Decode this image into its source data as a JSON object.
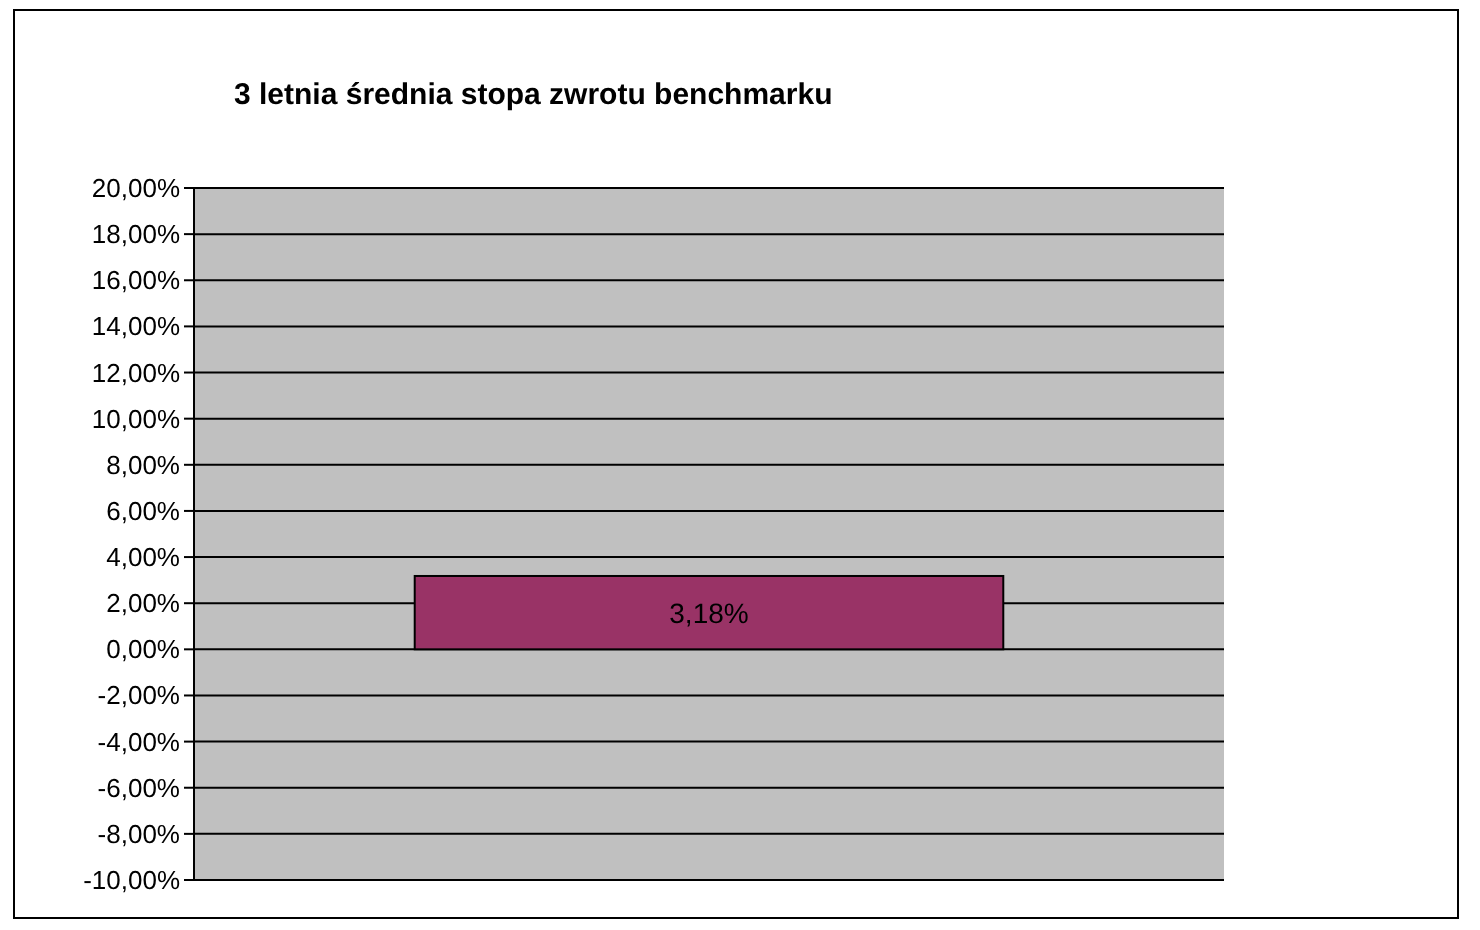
{
  "chart_data": {
    "type": "bar",
    "title": "3 letnia średnia stopa zwrotu benchmarku",
    "categories": [
      null
    ],
    "values": [
      3.18
    ],
    "color": "#993366",
    "value_labels": [
      "3,18%"
    ],
    "ylim": [
      -10,
      20
    ],
    "yticks": [
      {
        "value": -10,
        "label": "-10,00%"
      },
      {
        "value": -8,
        "label": "-8,00%"
      },
      {
        "value": -6,
        "label": "-6,00%"
      },
      {
        "value": -4,
        "label": "-4,00%"
      },
      {
        "value": -2,
        "label": "-2,00%"
      },
      {
        "value": 0,
        "label": "0,00%"
      },
      {
        "value": 2,
        "label": "2,00%"
      },
      {
        "value": 4,
        "label": "4,00%"
      },
      {
        "value": 6,
        "label": "6,00%"
      },
      {
        "value": 8,
        "label": "8,00%"
      },
      {
        "value": 10,
        "label": "10,00%"
      },
      {
        "value": 12,
        "label": "12,00%"
      },
      {
        "value": 14,
        "label": "14,00%"
      },
      {
        "value": 16,
        "label": "16,00%"
      },
      {
        "value": 18,
        "label": "18,00%"
      },
      {
        "value": 20,
        "label": "20,00%"
      }
    ],
    "grid": "y",
    "tick_labels": "y"
  }
}
